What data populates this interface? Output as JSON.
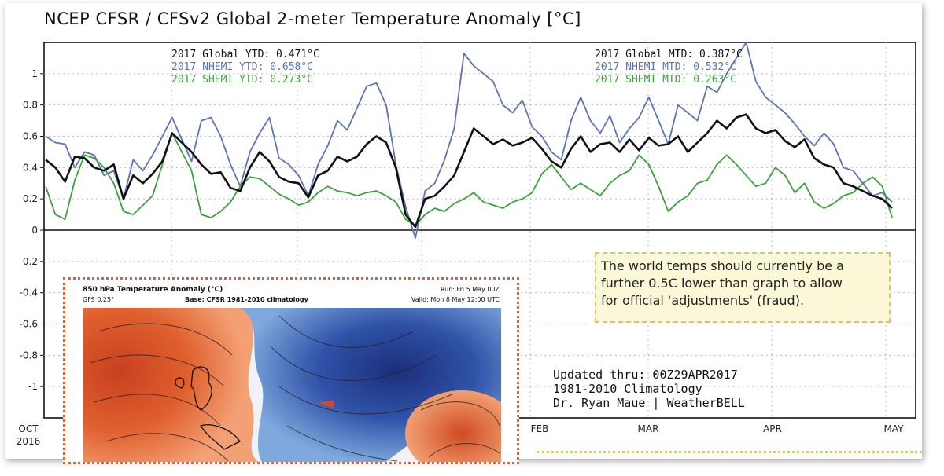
{
  "chart_data": {
    "type": "line",
    "title": "NCEP CFSR / CFSv2 Global 2-meter Temperature Anomaly [°C]",
    "ylim": [
      -1.2,
      1.2
    ],
    "y_ticks": [
      "1",
      "0.8",
      "0.6",
      "0.4",
      "0.2",
      "0",
      "-0.2",
      "-0.4",
      "-0.6",
      "-0.8",
      "-1"
    ],
    "x_labels": [
      "OCT\n2016",
      "FEB",
      "MAR",
      "APR",
      "MAY"
    ],
    "x_label_top": [
      "OCT",
      "FEB",
      "MAR",
      "APR",
      "MAY"
    ],
    "x_label_year": "2016",
    "grid": true,
    "legend_left": [
      {
        "text": "2017 Global YTD: 0.471°C",
        "color": "#111111"
      },
      {
        "text": "2017 NHEMI YTD: 0.658°C",
        "color": "#5b74b8"
      },
      {
        "text": "2017 SHEMI YTD: 0.273°C",
        "color": "#3aa23a"
      }
    ],
    "legend_right": [
      {
        "text": "2017 Global MTD: 0.387°C",
        "color": "#111111"
      },
      {
        "text": "2017 NHEMI MTD: 0.532°C",
        "color": "#5b74b8"
      },
      {
        "text": "2017 SHEMI MTD: 0.263°C",
        "color": "#3aa23a"
      }
    ],
    "series": [
      {
        "name": "Global",
        "color": "#111111",
        "values": [
          0.45,
          0.4,
          0.31,
          0.47,
          0.46,
          0.4,
          0.38,
          0.42,
          0.2,
          0.35,
          0.3,
          0.36,
          0.44,
          0.62,
          0.56,
          0.5,
          0.42,
          0.36,
          0.37,
          0.27,
          0.25,
          0.4,
          0.5,
          0.44,
          0.34,
          0.31,
          0.3,
          0.21,
          0.35,
          0.38,
          0.47,
          0.44,
          0.47,
          0.55,
          0.6,
          0.56,
          0.4,
          0.1,
          0.02,
          0.2,
          0.22,
          0.28,
          0.35,
          0.5,
          0.65,
          0.6,
          0.55,
          0.58,
          0.54,
          0.56,
          0.59,
          0.52,
          0.44,
          0.4,
          0.52,
          0.6,
          0.5,
          0.55,
          0.56,
          0.5,
          0.58,
          0.51,
          0.59,
          0.54,
          0.55,
          0.6,
          0.5,
          0.56,
          0.62,
          0.7,
          0.65,
          0.72,
          0.74,
          0.65,
          0.62,
          0.64,
          0.57,
          0.53,
          0.58,
          0.46,
          0.42,
          0.4,
          0.3,
          0.28,
          0.25,
          0.22,
          0.2,
          0.14
        ]
      },
      {
        "name": "NHEMI",
        "color": "#5b74b8",
        "values": [
          0.6,
          0.56,
          0.55,
          0.4,
          0.5,
          0.48,
          0.35,
          0.38,
          0.2,
          0.45,
          0.38,
          0.48,
          0.6,
          0.72,
          0.58,
          0.44,
          0.7,
          0.72,
          0.6,
          0.42,
          0.28,
          0.5,
          0.62,
          0.72,
          0.46,
          0.42,
          0.35,
          0.22,
          0.42,
          0.54,
          0.7,
          0.64,
          0.78,
          0.92,
          0.94,
          0.8,
          0.42,
          0.15,
          -0.05,
          0.25,
          0.3,
          0.45,
          0.65,
          1.13,
          1.05,
          1.0,
          0.95,
          0.8,
          0.75,
          0.83,
          0.66,
          0.6,
          0.5,
          0.45,
          0.7,
          0.85,
          0.7,
          0.62,
          0.73,
          0.56,
          0.65,
          0.72,
          0.85,
          0.7,
          0.55,
          0.8,
          0.75,
          0.7,
          0.92,
          0.88,
          1.0,
          1.1,
          1.2,
          0.95,
          0.85,
          0.8,
          0.75,
          0.68,
          0.6,
          0.54,
          0.62,
          0.55,
          0.4,
          0.38,
          0.3,
          0.22,
          0.24,
          0.18
        ]
      },
      {
        "name": "SHEMI",
        "color": "#3aa23a",
        "values": [
          0.28,
          0.1,
          0.07,
          0.32,
          0.48,
          0.46,
          0.4,
          0.3,
          0.12,
          0.1,
          0.16,
          0.22,
          0.42,
          0.62,
          0.5,
          0.38,
          0.1,
          0.08,
          0.12,
          0.18,
          0.28,
          0.34,
          0.33,
          0.28,
          0.23,
          0.2,
          0.16,
          0.18,
          0.24,
          0.28,
          0.25,
          0.24,
          0.22,
          0.24,
          0.25,
          0.22,
          0.18,
          0.07,
          0.03,
          0.1,
          0.14,
          0.12,
          0.17,
          0.2,
          0.24,
          0.18,
          0.16,
          0.14,
          0.18,
          0.2,
          0.24,
          0.36,
          0.42,
          0.34,
          0.26,
          0.3,
          0.26,
          0.22,
          0.3,
          0.35,
          0.38,
          0.48,
          0.42,
          0.28,
          0.12,
          0.18,
          0.22,
          0.3,
          0.32,
          0.42,
          0.48,
          0.42,
          0.35,
          0.28,
          0.3,
          0.4,
          0.35,
          0.24,
          0.3,
          0.18,
          0.14,
          0.17,
          0.22,
          0.24,
          0.3,
          0.34,
          0.28,
          0.08
        ]
      }
    ]
  },
  "annotation": {
    "line1": "The world temps should currently be a",
    "line2": "further 0.5C lower than graph to allow",
    "line3": "for official 'adjustments' (fraud)."
  },
  "credits": {
    "line1": "Updated thru: 00Z29APR2017",
    "line2": "1981-2010 Climatology",
    "line3": "Dr. Ryan Maue | WeatherBELL"
  },
  "inset": {
    "title": "850 hPa Temperature Anomaly (°C)",
    "subtitle_left": "GFS 0.25°",
    "subtitle_mid": "Base: CFSR 1981-2010 climatology",
    "run": "Run: Fri 5 May 00Z",
    "valid": "Valid: Mon 8 May 12:00 UTC"
  }
}
